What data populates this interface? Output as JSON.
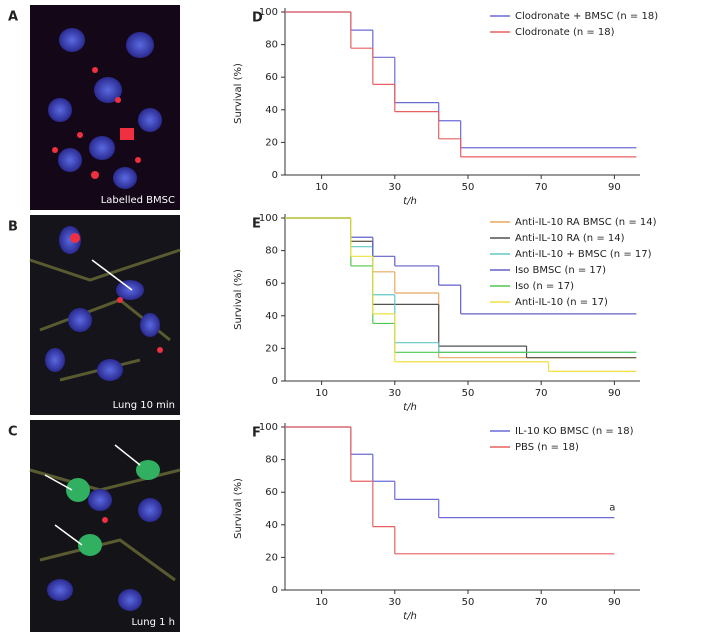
{
  "panels": [
    {
      "label": "A",
      "caption": "Labelled BMSC"
    },
    {
      "label": "B",
      "caption": "Lung 10 min"
    },
    {
      "label": "C",
      "caption": "Lung 1 h"
    }
  ],
  "chart_data": [
    {
      "type": "step",
      "panel": "D",
      "ylabel": "Survival (%)",
      "xlabel": "t/h",
      "xlim": [
        0,
        97
      ],
      "ylim": [
        0,
        100
      ],
      "xticks": [
        10,
        30,
        50,
        70,
        90
      ],
      "yticks": [
        0,
        20,
        40,
        60,
        80,
        100
      ],
      "series": [
        {
          "name": "Clodronate + BMSC (n = 18)",
          "color": "#6b6bd8",
          "x": [
            0,
            18,
            24,
            30,
            42,
            48,
            96
          ],
          "values": [
            100,
            88.9,
            72.2,
            44.4,
            33.3,
            16.7,
            16.7
          ]
        },
        {
          "name": "Clodronate (n = 18)",
          "color": "#e86060",
          "x": [
            0,
            18,
            24,
            30,
            42,
            48,
            96
          ],
          "values": [
            100,
            77.8,
            55.6,
            38.9,
            22.2,
            11.1,
            11.1
          ]
        }
      ]
    },
    {
      "type": "step",
      "panel": "E",
      "ylabel": "Survival (%)",
      "xlabel": "t/h",
      "xlim": [
        0,
        97
      ],
      "ylim": [
        0,
        100
      ],
      "xticks": [
        10,
        30,
        50,
        70,
        90
      ],
      "yticks": [
        0,
        20,
        40,
        60,
        80,
        100
      ],
      "series": [
        {
          "name": "Anti-IL-10 RA BMSC (n = 14)",
          "color": "#e8a860",
          "x": [
            0,
            18,
            24,
            30,
            42,
            96
          ],
          "values": [
            100,
            85.7,
            67,
            54,
            14.3,
            14.3
          ]
        },
        {
          "name": "Anti-IL-10 RA (n = 14)",
          "color": "#505050",
          "x": [
            0,
            18,
            24,
            42,
            66,
            96
          ],
          "values": [
            100,
            85.7,
            47,
            21.4,
            14.3,
            14.3
          ]
        },
        {
          "name": "Anti-IL-10 + BMSC (n = 17)",
          "color": "#60c8c8",
          "x": [
            0,
            18,
            24,
            30,
            42,
            96
          ],
          "values": [
            100,
            82.4,
            52.9,
            23.5,
            17.6,
            17.6
          ]
        },
        {
          "name": "Iso BMSC (n = 17)",
          "color": "#6060c8",
          "x": [
            0,
            18,
            24,
            30,
            42,
            48,
            96
          ],
          "values": [
            100,
            88.2,
            76.5,
            70.6,
            58.8,
            41.2,
            41.2
          ]
        },
        {
          "name": "Iso (n = 17)",
          "color": "#50c850",
          "x": [
            0,
            18,
            24,
            30,
            96
          ],
          "values": [
            100,
            70.6,
            35.3,
            17.6,
            17.6
          ]
        },
        {
          "name": "Anti-IL-10 (n = 17)",
          "color": "#f0e040",
          "x": [
            0,
            18,
            24,
            30,
            72,
            96
          ],
          "values": [
            100,
            76.5,
            41.2,
            11.8,
            5.9,
            5.9
          ]
        }
      ]
    },
    {
      "type": "step",
      "panel": "F",
      "ylabel": "Survival (%)",
      "xlabel": "t/h",
      "xlim": [
        0,
        97
      ],
      "ylim": [
        0,
        100
      ],
      "xticks": [
        10,
        30,
        50,
        70,
        90
      ],
      "yticks": [
        0,
        20,
        40,
        60,
        80,
        100
      ],
      "annotation": "a",
      "series": [
        {
          "name": "IL-10 KO BMSC (n = 18)",
          "color": "#6b6bd8",
          "x": [
            0,
            18,
            24,
            30,
            42,
            90
          ],
          "values": [
            100,
            83.3,
            66.7,
            55.6,
            44.4,
            44.4
          ]
        },
        {
          "name": "PBS (n = 18)",
          "color": "#e86060",
          "x": [
            0,
            18,
            24,
            30,
            90
          ],
          "values": [
            100,
            66.7,
            38.9,
            22.2,
            22.2
          ]
        }
      ]
    }
  ]
}
